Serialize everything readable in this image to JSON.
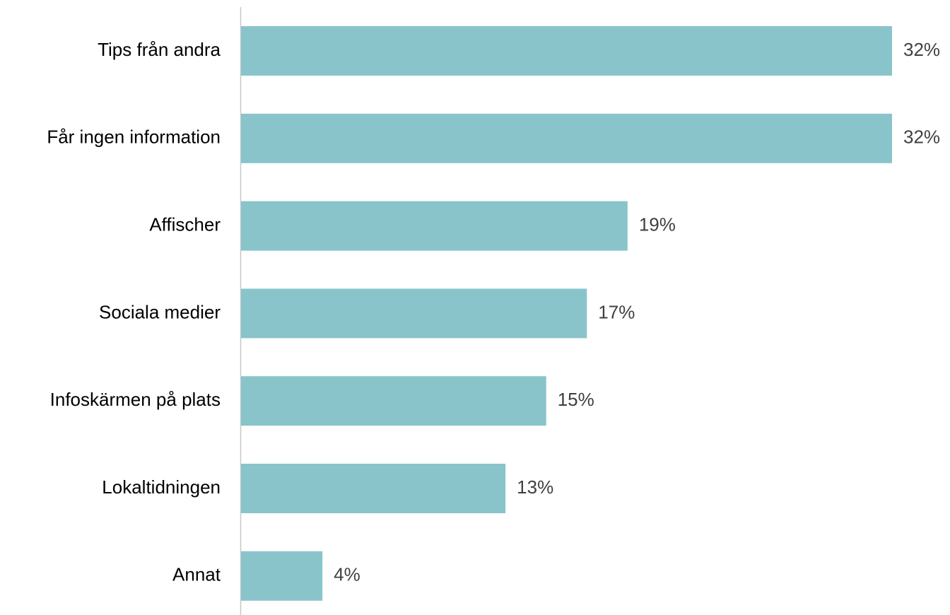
{
  "chart_data": {
    "type": "bar",
    "orientation": "horizontal",
    "categories": [
      "Tips från andra",
      "Får ingen information",
      "Affischer",
      "Sociala medier",
      "Infoskärmen på plats",
      "Lokaltidningen",
      "Annat"
    ],
    "values": [
      32,
      32,
      19,
      17,
      15,
      13,
      4
    ],
    "value_labels": [
      "32%",
      "32%",
      "19%",
      "17%",
      "15%",
      "13%",
      "4%"
    ],
    "color": "#89c4cb"
  }
}
